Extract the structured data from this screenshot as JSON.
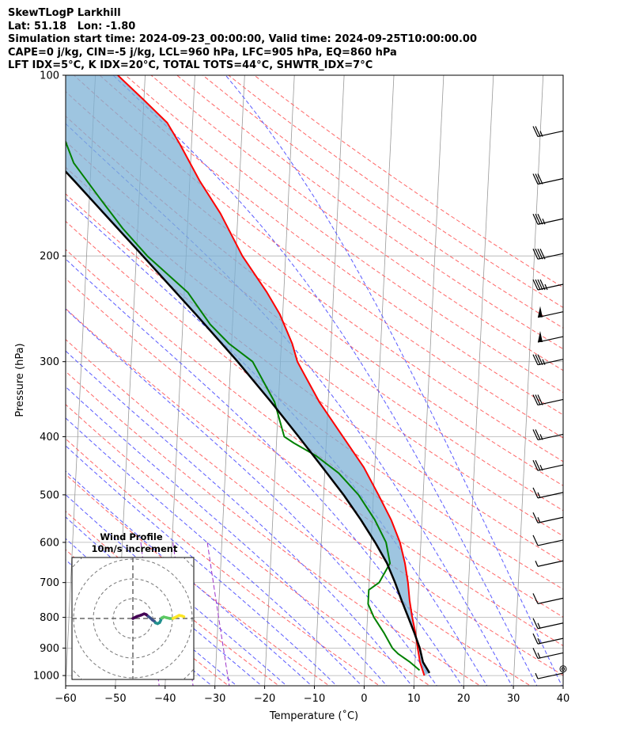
{
  "title_lines": [
    "SkewTLogP Larkhill",
    "Lat: 51.18   Lon: -1.80",
    "Simulation start time: 2024-09-23_00:00:00, Valid time: 2024-09-25T10:00:00.00",
    "CAPE=0 j/kg, CIN=-5 j/kg, LCL=960 hPa, LFC=905 hPa, EQ=860 hPa",
    "LFT IDX=5°C, K IDX=20°C, TOTAL TOTS=44°C, SHWTR_IDX=7°C"
  ],
  "chart_data": {
    "type": "skew-t",
    "xlabel": "Temperature (˚C)",
    "ylabel": "Pressure (hPa)",
    "xlim": [
      -60,
      40
    ],
    "ylim": [
      1040,
      100
    ],
    "y_scale": "log",
    "x_ticks": [
      -60,
      -50,
      -40,
      -30,
      -20,
      -10,
      0,
      10,
      20,
      30,
      40
    ],
    "x_tick_labels": [
      "−60",
      "−50",
      "−40",
      "−30",
      "−20",
      "−10",
      "0",
      "10",
      "20",
      "30",
      "40"
    ],
    "y_ticks": [
      100,
      200,
      300,
      400,
      500,
      600,
      700,
      800,
      900,
      1000
    ],
    "y_tick_labels": [
      "100",
      "200",
      "300",
      "400",
      "500",
      "600",
      "700",
      "800",
      "900",
      "1000"
    ],
    "grid": true,
    "colors": {
      "temperature": "#ff0000",
      "dewpoint": "#008000",
      "parcel": "#000000",
      "cape_fill": "#7eb2d6",
      "dry_adiabats": "#ff6666",
      "moist_adiabats": "#5a5aff",
      "mixing_ratio": "#9b30c8",
      "isotherms": "#999999"
    },
    "series": [
      {
        "key": "temperature",
        "points": [
          [
            1000,
            12.0
          ],
          [
            950,
            11.0
          ],
          [
            925,
            10.7
          ],
          [
            900,
            10.4
          ],
          [
            850,
            9.8
          ],
          [
            800,
            9.0
          ],
          [
            750,
            8.3
          ],
          [
            700,
            7.8
          ],
          [
            650,
            7.0
          ],
          [
            600,
            5.8
          ],
          [
            550,
            3.8
          ],
          [
            500,
            1.0
          ],
          [
            450,
            -2.2
          ],
          [
            400,
            -6.7
          ],
          [
            350,
            -11.8
          ],
          [
            320,
            -14.6
          ],
          [
            300,
            -16.6
          ],
          [
            280,
            -17.8
          ],
          [
            250,
            -20.6
          ],
          [
            230,
            -23.4
          ],
          [
            200,
            -28.7
          ],
          [
            170,
            -33.5
          ],
          [
            150,
            -38.0
          ],
          [
            130,
            -42.4
          ],
          [
            120,
            -45.1
          ],
          [
            110,
            -50.0
          ],
          [
            100,
            -55.5
          ]
        ]
      },
      {
        "key": "dewpoint",
        "points": [
          [
            980,
            11.0
          ],
          [
            950,
            9.0
          ],
          [
            920,
            6.5
          ],
          [
            900,
            5.3
          ],
          [
            850,
            3.5
          ],
          [
            800,
            1.3
          ],
          [
            760,
            0.0
          ],
          [
            720,
            0.0
          ],
          [
            700,
            2.0
          ],
          [
            650,
            4.0
          ],
          [
            600,
            3.0
          ],
          [
            550,
            0.5
          ],
          [
            500,
            -3.0
          ],
          [
            460,
            -7.2
          ],
          [
            430,
            -12.0
          ],
          [
            410,
            -16.5
          ],
          [
            400,
            -18.5
          ],
          [
            350,
            -20.8
          ],
          [
            300,
            -25.6
          ],
          [
            280,
            -30.5
          ],
          [
            260,
            -34.5
          ],
          [
            230,
            -39.3
          ],
          [
            200,
            -47.8
          ],
          [
            180,
            -53.0
          ],
          [
            160,
            -58.0
          ],
          [
            140,
            -63.5
          ],
          [
            120,
            -67.0
          ],
          [
            100,
            -72.0
          ]
        ]
      },
      {
        "key": "parcel",
        "points": [
          [
            990,
            13.0
          ],
          [
            950,
            11.6
          ],
          [
            900,
            10.8
          ],
          [
            850,
            9.6
          ],
          [
            800,
            8.2
          ],
          [
            750,
            6.7
          ],
          [
            700,
            5.2
          ],
          [
            650,
            3.4
          ],
          [
            600,
            0.8
          ],
          [
            550,
            -2.3
          ],
          [
            500,
            -6.0
          ],
          [
            450,
            -10.5
          ],
          [
            400,
            -15.6
          ],
          [
            350,
            -21.5
          ],
          [
            300,
            -28.6
          ],
          [
            250,
            -37.5
          ],
          [
            200,
            -48.7
          ],
          [
            150,
            -63.2
          ],
          [
            100,
            -84.0
          ]
        ]
      }
    ],
    "wind_barbs": {
      "color": "#000000",
      "levels": [
        {
          "p": 1000,
          "speed_kt": 5
        },
        {
          "p": 975,
          "speed_kt": 0
        },
        {
          "p": 925,
          "speed_kt": 15
        },
        {
          "p": 875,
          "speed_kt": 15
        },
        {
          "p": 825,
          "speed_kt": 15
        },
        {
          "p": 750,
          "speed_kt": 10
        },
        {
          "p": 650,
          "speed_kt": 5
        },
        {
          "p": 600,
          "speed_kt": 10
        },
        {
          "p": 550,
          "speed_kt": 15
        },
        {
          "p": 500,
          "speed_kt": 15
        },
        {
          "p": 450,
          "speed_kt": 25
        },
        {
          "p": 400,
          "speed_kt": 25
        },
        {
          "p": 350,
          "speed_kt": 30
        },
        {
          "p": 300,
          "speed_kt": 35
        },
        {
          "p": 275,
          "speed_kt": 50
        },
        {
          "p": 250,
          "speed_kt": 50
        },
        {
          "p": 225,
          "speed_kt": 45
        },
        {
          "p": 200,
          "speed_kt": 40
        },
        {
          "p": 175,
          "speed_kt": 35
        },
        {
          "p": 150,
          "speed_kt": 30
        },
        {
          "p": 125,
          "speed_kt": 25
        }
      ]
    },
    "hodograph": {
      "title": "Wind Profile",
      "subtitle": "10m/s increment",
      "points": [
        [
          0,
          0
        ],
        [
          2,
          0.8
        ],
        [
          4,
          1.3
        ],
        [
          5.5,
          1.8
        ],
        [
          6.5,
          1.5
        ],
        [
          7.5,
          0.8
        ],
        [
          8.5,
          0.2
        ],
        [
          9.5,
          -0.6
        ],
        [
          10.5,
          -1.1
        ],
        [
          11,
          -1.7
        ],
        [
          12,
          -2.0
        ],
        [
          13,
          -1.6
        ],
        [
          13.5,
          -0.8
        ],
        [
          14,
          0.2
        ],
        [
          15,
          0.6
        ],
        [
          16.5,
          0.3
        ],
        [
          18,
          0.0
        ],
        [
          19.5,
          0.0
        ],
        [
          20.5,
          0.4
        ],
        [
          21.5,
          0.8
        ],
        [
          22.5,
          1.2
        ],
        [
          23.8,
          1.0
        ],
        [
          24.8,
          0.7
        ]
      ],
      "colormap": [
        "#440154",
        "#3b528b",
        "#21908d",
        "#5dc963",
        "#fde725"
      ]
    }
  }
}
